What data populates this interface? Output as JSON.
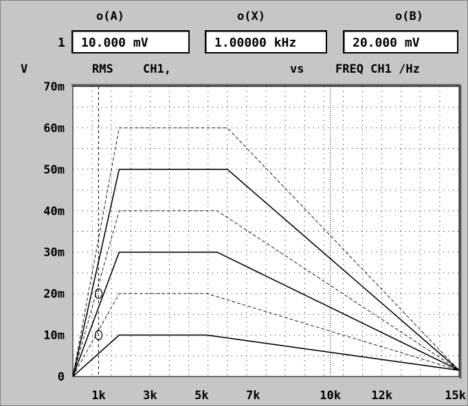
{
  "header": {
    "col_a_label": "o(A)",
    "col_x_label": "o(X)",
    "col_b_label": "o(B)",
    "row_number": "1",
    "field_a_value": "10.000 mV",
    "field_x_value": "1.00000 kHz",
    "field_b_value": "20.000 mV"
  },
  "axis_header": {
    "y_unit": "V",
    "y_quantity": "RMS",
    "y_channel": "CH1,",
    "vs": "vs",
    "x_quantity": "FREQ CH1 /Hz"
  },
  "chart_data": {
    "type": "line",
    "title": "",
    "xlabel": "FREQ CH1 /Hz",
    "ylabel": "RMS CH1, V",
    "xlim": [
      0,
      15000
    ],
    "ylim": [
      0,
      0.07
    ],
    "grid": true,
    "x_ticks": [
      {
        "value": 1000,
        "label": "1k"
      },
      {
        "value": 3000,
        "label": "3k"
      },
      {
        "value": 5000,
        "label": "5k"
      },
      {
        "value": 7000,
        "label": "7k"
      },
      {
        "value": 10000,
        "label": "10k"
      },
      {
        "value": 12000,
        "label": "12k"
      },
      {
        "value": 15000,
        "label": "15k"
      }
    ],
    "y_ticks": [
      {
        "value": 0,
        "label": "0"
      },
      {
        "value": 0.01,
        "label": "10m"
      },
      {
        "value": 0.02,
        "label": "20m"
      },
      {
        "value": 0.03,
        "label": "30m"
      },
      {
        "value": 0.04,
        "label": "40m"
      },
      {
        "value": 0.05,
        "label": "50m"
      },
      {
        "value": 0.06,
        "label": "60m"
      },
      {
        "value": 0.07,
        "label": "70m"
      }
    ],
    "cursors": [
      {
        "name": "X",
        "x": 1000,
        "style": "dashed"
      },
      {
        "name": "B",
        "x": 10000,
        "style": "dotted"
      }
    ],
    "markers": [
      {
        "name": "A",
        "x": 1000,
        "y": 0.01
      },
      {
        "name": "B",
        "x": 1000,
        "y": 0.02
      }
    ],
    "series": [
      {
        "style": "solid",
        "points": [
          [
            0,
            0
          ],
          [
            1800,
            0.01
          ],
          [
            5200,
            0.01
          ],
          [
            15000,
            0.0015
          ]
        ]
      },
      {
        "style": "dashed",
        "points": [
          [
            0,
            0
          ],
          [
            1800,
            0.02
          ],
          [
            5200,
            0.02
          ],
          [
            15000,
            0.0015
          ]
        ]
      },
      {
        "style": "solid",
        "points": [
          [
            0,
            0
          ],
          [
            1800,
            0.03
          ],
          [
            5600,
            0.03
          ],
          [
            15000,
            0.0015
          ]
        ]
      },
      {
        "style": "dashed",
        "points": [
          [
            0,
            0
          ],
          [
            1800,
            0.04
          ],
          [
            5600,
            0.04
          ],
          [
            15000,
            0.0015
          ]
        ]
      },
      {
        "style": "solid",
        "points": [
          [
            0,
            0
          ],
          [
            1800,
            0.05
          ],
          [
            6000,
            0.05
          ],
          [
            15000,
            0.0015
          ]
        ]
      },
      {
        "style": "dashed",
        "points": [
          [
            0,
            0
          ],
          [
            1800,
            0.06
          ],
          [
            6000,
            0.06
          ],
          [
            15000,
            0.0015
          ]
        ]
      }
    ]
  },
  "colors": {
    "panel_bg": "#c6c6c6",
    "plot_bg": "#ffffff",
    "grid": "#000000",
    "trace": "#000000"
  }
}
